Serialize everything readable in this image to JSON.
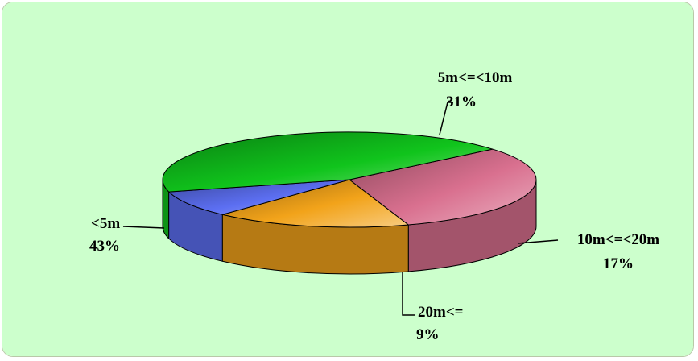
{
  "chart_data": {
    "type": "pie",
    "title": "",
    "slices": [
      {
        "label": "5m<=<10m",
        "percent_label": "31%",
        "value": 31,
        "color": "#d9708f"
      },
      {
        "label": "10m<=<20m",
        "percent_label": "17%",
        "value": 17,
        "color": "#f2a31a"
      },
      {
        "label": "20m<=",
        "percent_label": "9%",
        "value": 9,
        "color": "#5c6ff2"
      },
      {
        "label": "<5m",
        "percent_label": "43%",
        "value": 43,
        "color": "#10c41c"
      }
    ],
    "background_color": "#ccffcc",
    "three_d": true
  }
}
